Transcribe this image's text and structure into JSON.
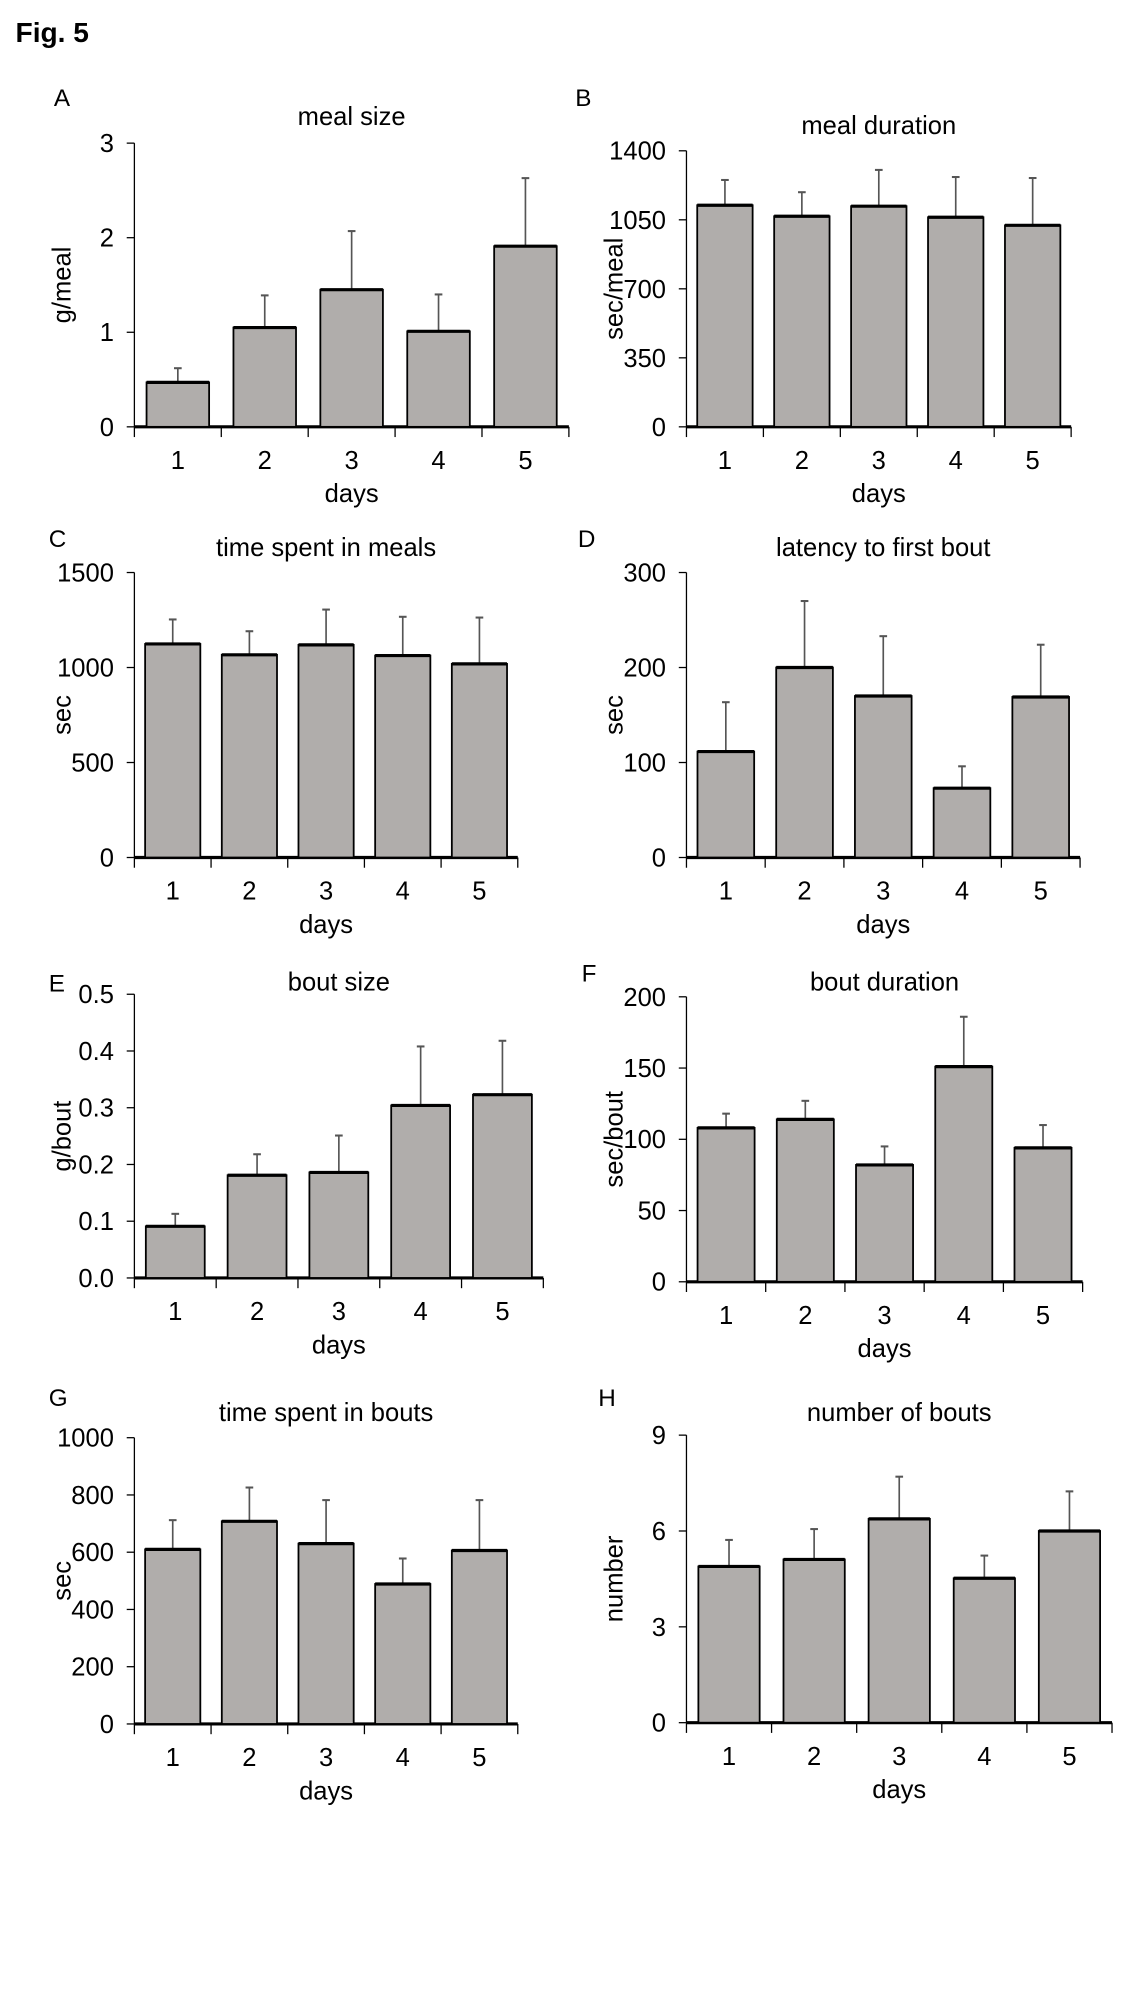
{
  "figure_label": "Fig. 5",
  "chart_data": [
    {
      "panel": "A",
      "type": "bar",
      "title": "meal size",
      "xlabel": "days",
      "ylabel": "g/meal",
      "categories": [
        "1",
        "2",
        "3",
        "4",
        "5"
      ],
      "values": [
        0.47,
        1.05,
        1.45,
        1.01,
        1.91
      ],
      "error_upper": [
        0.62,
        1.39,
        2.07,
        1.4,
        2.63
      ],
      "ylim": [
        0,
        3
      ],
      "yticks": [
        "0",
        "1",
        "2",
        "3"
      ],
      "bar_color": "#b0adab",
      "grid": false
    },
    {
      "panel": "B",
      "type": "bar",
      "title": "meal duration",
      "xlabel": "days",
      "ylabel": "sec/meal",
      "categories": [
        "1",
        "2",
        "3",
        "4",
        "5"
      ],
      "values": [
        1124,
        1068,
        1119,
        1063,
        1022
      ],
      "error_upper": [
        1252,
        1190,
        1303,
        1267,
        1262
      ],
      "ylim": [
        0,
        1400
      ],
      "yticks": [
        "0",
        "350",
        "700",
        "1050",
        "1400"
      ],
      "bar_color": "#b0adab",
      "grid": false
    },
    {
      "panel": "C",
      "type": "bar",
      "title": "time spent in meals",
      "xlabel": "days",
      "ylabel": "sec",
      "categories": [
        "1",
        "2",
        "3",
        "4",
        "5"
      ],
      "values": [
        1124,
        1067,
        1119,
        1063,
        1019
      ],
      "error_upper": [
        1253,
        1191,
        1305,
        1267,
        1263
      ],
      "ylim": [
        0,
        1500
      ],
      "yticks": [
        "0",
        "500",
        "1000",
        "1500"
      ],
      "bar_color": "#b0adab",
      "grid": false
    },
    {
      "panel": "D",
      "type": "bar",
      "title": "latency to first bout",
      "xlabel": "days",
      "ylabel": "sec",
      "categories": [
        "1",
        "2",
        "3",
        "4",
        "5"
      ],
      "values": [
        111.5,
        200,
        170,
        73,
        169
      ],
      "error_upper": [
        163.5,
        270,
        233,
        96,
        224
      ],
      "ylim": [
        0,
        300
      ],
      "yticks": [
        "0",
        "100",
        "200",
        "300"
      ],
      "bar_color": "#b0adab",
      "grid": false
    },
    {
      "panel": "E",
      "type": "bar",
      "title": "bout size",
      "xlabel": "days",
      "ylabel": "g/bout",
      "categories": [
        "1",
        "2",
        "3",
        "4",
        "5"
      ],
      "values": [
        0.091,
        0.181,
        0.186,
        0.304,
        0.323
      ],
      "error_upper": [
        0.113,
        0.218,
        0.251,
        0.408,
        0.418
      ],
      "ylim": [
        0,
        0.5
      ],
      "yticks": [
        "0.0",
        "0.1",
        "0.2",
        "0.3",
        "0.4",
        "0.5"
      ],
      "bar_color": "#b0adab",
      "grid": false
    },
    {
      "panel": "F",
      "type": "bar",
      "title": "bout duration",
      "xlabel": "days",
      "ylabel": "sec/bout",
      "categories": [
        "1",
        "2",
        "3",
        "4",
        "5"
      ],
      "values": [
        108,
        114,
        82,
        151,
        94
      ],
      "error_upper": [
        118,
        127,
        95,
        186,
        110
      ],
      "ylim": [
        0,
        200
      ],
      "yticks": [
        "0",
        "50",
        "100",
        "150",
        "200"
      ],
      "bar_color": "#b0adab",
      "grid": false
    },
    {
      "panel": "G",
      "type": "bar",
      "title": "time spent in bouts",
      "xlabel": "days",
      "ylabel": "sec",
      "categories": [
        "1",
        "2",
        "3",
        "4",
        "5"
      ],
      "values": [
        610,
        708,
        630,
        489,
        606
      ],
      "error_upper": [
        712,
        826,
        782,
        578,
        782
      ],
      "ylim": [
        0,
        1000
      ],
      "yticks": [
        "0",
        "200",
        "400",
        "600",
        "800",
        "1000"
      ],
      "bar_color": "#b0adab",
      "grid": false
    },
    {
      "panel": "H",
      "type": "bar",
      "title": "number of bouts",
      "xlabel": "days",
      "ylabel": "number",
      "categories": [
        "1",
        "2",
        "3",
        "4",
        "5"
      ],
      "values": [
        4.89,
        5.11,
        6.38,
        4.52,
        6.0
      ],
      "error_upper": [
        5.72,
        6.06,
        7.7,
        5.23,
        7.24
      ],
      "ylim": [
        0,
        9
      ],
      "yticks": [
        "0",
        "3",
        "6",
        "9"
      ],
      "bar_color": "#b0adab",
      "grid": false
    }
  ]
}
